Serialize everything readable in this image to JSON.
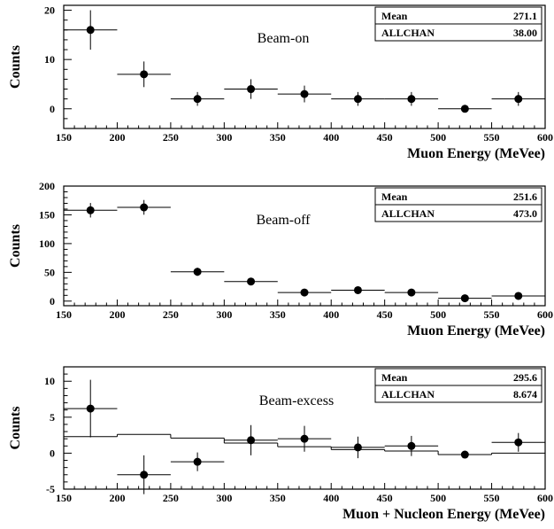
{
  "chart_data": [
    {
      "type": "scatter",
      "annotation": "Beam-on",
      "xlabel": "Muon Energy (MeVee)",
      "ylabel": "Counts",
      "xlim": [
        150,
        600
      ],
      "ylim": [
        -4,
        21
      ],
      "xticks": [
        150,
        200,
        250,
        300,
        350,
        400,
        450,
        500,
        550,
        600
      ],
      "yticks": [
        0,
        10,
        20
      ],
      "stats": [
        {
          "label": "Mean",
          "value": "271.1"
        },
        {
          "label": "ALLCHAN",
          "value": "38.00"
        }
      ],
      "series": [
        {
          "x": [
            175,
            225,
            275,
            325,
            375,
            425,
            475,
            525,
            575
          ],
          "y": [
            16,
            7,
            2,
            4,
            3,
            2,
            2,
            0,
            2
          ],
          "yerr": [
            4,
            2.6,
            1.4,
            2,
            1.7,
            1.4,
            1.4,
            0,
            1.4
          ]
        }
      ]
    },
    {
      "type": "scatter",
      "annotation": "Beam-off",
      "xlabel": "Muon Energy (MeVee)",
      "ylabel": "Counts",
      "xlim": [
        150,
        600
      ],
      "ylim": [
        -8,
        200
      ],
      "xticks": [
        150,
        200,
        250,
        300,
        350,
        400,
        450,
        500,
        550,
        600
      ],
      "yticks": [
        0,
        50,
        100,
        150,
        200
      ],
      "stats": [
        {
          "label": "Mean",
          "value": "251.6"
        },
        {
          "label": "ALLCHAN",
          "value": "473.0"
        }
      ],
      "series": [
        {
          "x": [
            175,
            225,
            275,
            325,
            375,
            425,
            475,
            525,
            575
          ],
          "y": [
            158,
            163,
            51,
            34,
            15,
            19,
            15,
            5,
            9
          ],
          "yerr": [
            12.6,
            12.8,
            7.1,
            5.8,
            3.9,
            4.4,
            3.9,
            2.2,
            3
          ]
        }
      ]
    },
    {
      "type": "scatter",
      "annotation": "Beam-excess",
      "xlabel": "Muon + Nucleon Energy (MeVee)",
      "ylabel": "Counts",
      "xlim": [
        150,
        600
      ],
      "ylim": [
        -5,
        12
      ],
      "xticks": [
        150,
        200,
        250,
        300,
        350,
        400,
        450,
        500,
        550,
        600
      ],
      "yticks": [
        -5,
        0,
        5,
        10
      ],
      "stats": [
        {
          "label": "Mean",
          "value": "295.6"
        },
        {
          "label": "ALLCHAN",
          "value": "8.674"
        }
      ],
      "series": [
        {
          "x": [
            175,
            225,
            275,
            325,
            375,
            425,
            475,
            525,
            575
          ],
          "y": [
            6.2,
            -3.0,
            -1.2,
            1.8,
            2.0,
            0.8,
            1.0,
            -0.2,
            1.5
          ],
          "yerr": [
            4.0,
            2.7,
            1.3,
            2.1,
            1.8,
            1.5,
            1.4,
            0.3,
            1.3
          ]
        },
        {
          "type": "histogram",
          "bin_edges": [
            150,
            200,
            250,
            300,
            350,
            400,
            450,
            500,
            550,
            600
          ],
          "values": [
            2.3,
            2.6,
            2.1,
            1.4,
            0.9,
            0.5,
            0.3,
            -0.2,
            0.0
          ]
        }
      ]
    }
  ]
}
